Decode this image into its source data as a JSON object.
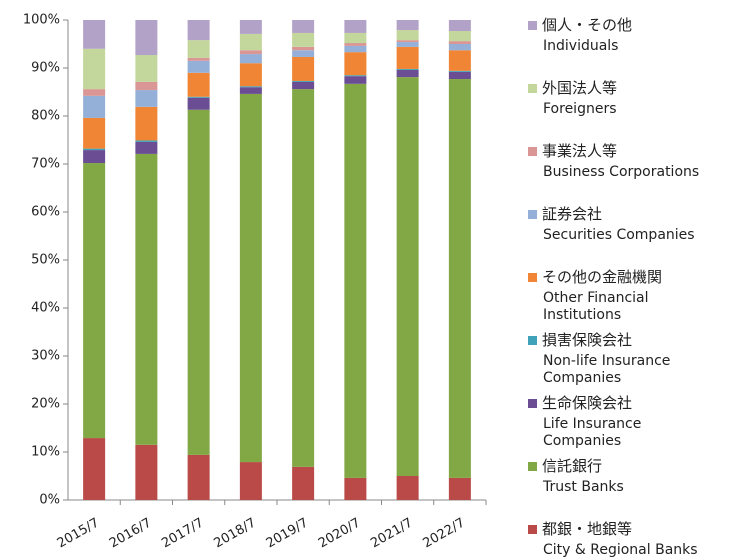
{
  "chart_data": {
    "type": "stacked_bar_percent",
    "categories": [
      "2015/7",
      "2016/7",
      "2017/7",
      "2018/7",
      "2019/7",
      "2020/7",
      "2021/7",
      "2022/7"
    ],
    "ylim": [
      0,
      100
    ],
    "yticks": [
      {
        "value": 0,
        "label": "0%"
      },
      {
        "value": 10,
        "label": "10%"
      },
      {
        "value": 20,
        "label": "20%"
      },
      {
        "value": 30,
        "label": "30%"
      },
      {
        "value": 40,
        "label": "40%"
      },
      {
        "value": 50,
        "label": "50%"
      },
      {
        "value": 60,
        "label": "60%"
      },
      {
        "value": 70,
        "label": "70%"
      },
      {
        "value": 80,
        "label": "80%"
      },
      {
        "value": 90,
        "label": "90%"
      },
      {
        "value": 100,
        "label": "100%"
      }
    ],
    "legend": "right",
    "series": [
      {
        "name": "都銀・地銀等",
        "name_en": "City & Regional Banks",
        "color": "#b94a48",
        "values": [
          12.9,
          11.5,
          9.4,
          7.9,
          6.9,
          4.6,
          5.0,
          4.6
        ]
      },
      {
        "name": "信託銀行",
        "name_en": "Trust Banks",
        "color": "#82a845",
        "values": [
          57.3,
          60.6,
          71.9,
          76.7,
          78.7,
          82.1,
          83.1,
          83.1
        ]
      },
      {
        "name": "生命保険会社",
        "name_en": "Life Insurance Companies",
        "color": "#6b4d94",
        "values": [
          2.7,
          2.5,
          2.5,
          1.4,
          1.5,
          1.6,
          1.5,
          1.5
        ]
      },
      {
        "name": "損害保険会社",
        "name_en": "Non-life Insurance Companies",
        "color": "#3fa2b8",
        "values": [
          0.3,
          0.3,
          0.2,
          0.2,
          0.2,
          0.2,
          0.2,
          0.2
        ]
      },
      {
        "name": "その他の金融機関",
        "name_en": "Other Financial Institutions",
        "color": "#ef8535",
        "values": [
          6.4,
          7.0,
          5.0,
          4.8,
          5.0,
          4.8,
          4.6,
          4.3
        ]
      },
      {
        "name": "証券会社",
        "name_en": "Securities Companies",
        "color": "#94b0d8",
        "values": [
          4.6,
          3.5,
          2.5,
          1.9,
          1.4,
          1.3,
          1.0,
          1.3
        ]
      },
      {
        "name": "事業法人等",
        "name_en": "Business Corporations",
        "color": "#d99694",
        "values": [
          1.4,
          1.7,
          0.6,
          0.8,
          0.7,
          0.6,
          0.4,
          0.6
        ]
      },
      {
        "name": "外国法人等",
        "name_en": "Foreigners",
        "color": "#c3d69b",
        "values": [
          8.4,
          5.6,
          3.7,
          3.4,
          2.9,
          2.1,
          2.1,
          2.1
        ]
      },
      {
        "name": "個人・その他",
        "name_en": "Individuals",
        "color": "#b3a2c7",
        "values": [
          6.0,
          7.3,
          4.2,
          2.9,
          2.7,
          2.7,
          2.1,
          2.3
        ]
      }
    ]
  }
}
